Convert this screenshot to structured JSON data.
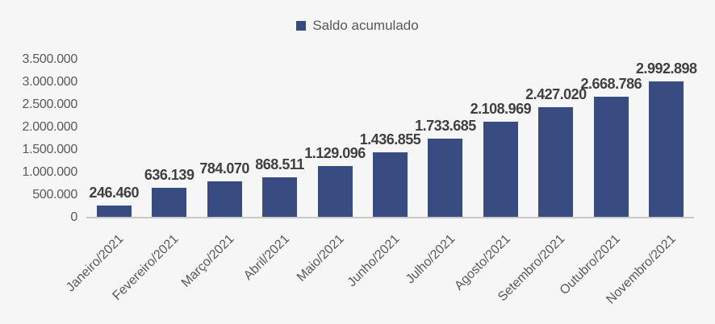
{
  "legend": {
    "label": "Saldo acumulado"
  },
  "colors": {
    "bar": "#394c81",
    "background": "#f6f6f6",
    "axis_line": "#c9c9c9",
    "data_label": "#404040",
    "tick_label": "#595959"
  },
  "chart_data": {
    "type": "bar",
    "title": "",
    "legend_entries": [
      "Saldo acumulado"
    ],
    "legend_position": "top-center",
    "categories": [
      "Janeiro/2021",
      "Fevereiro/2021",
      "Março/2021",
      "Abril/2021",
      "Maio/2021",
      "Junho/2021",
      "Julho/2021",
      "Agosto/2021",
      "Setembro/2021",
      "Outubro/2021",
      "Novembro/2021"
    ],
    "series": [
      {
        "name": "Saldo acumulado",
        "values": [
          246460,
          636139,
          784070,
          868511,
          1129096,
          1436855,
          1733685,
          2108969,
          2427020,
          2668786,
          2992898
        ]
      }
    ],
    "value_labels": [
      "246.460",
      "636.139",
      "784.070",
      "868.511",
      "1.129.096",
      "1.436.855",
      "1.733.685",
      "2.108.969",
      "2.427.020",
      "2.668.786",
      "2.992.898"
    ],
    "y_tick_labels": [
      "0",
      "500.000",
      "1.000.000",
      "1.500.000",
      "2.000.000",
      "2.500.000",
      "3.000.000",
      "3.500.000"
    ],
    "ylim": [
      0,
      3500000
    ],
    "y_step": 500000,
    "grid": false,
    "x_label_rotation_deg": -45
  }
}
